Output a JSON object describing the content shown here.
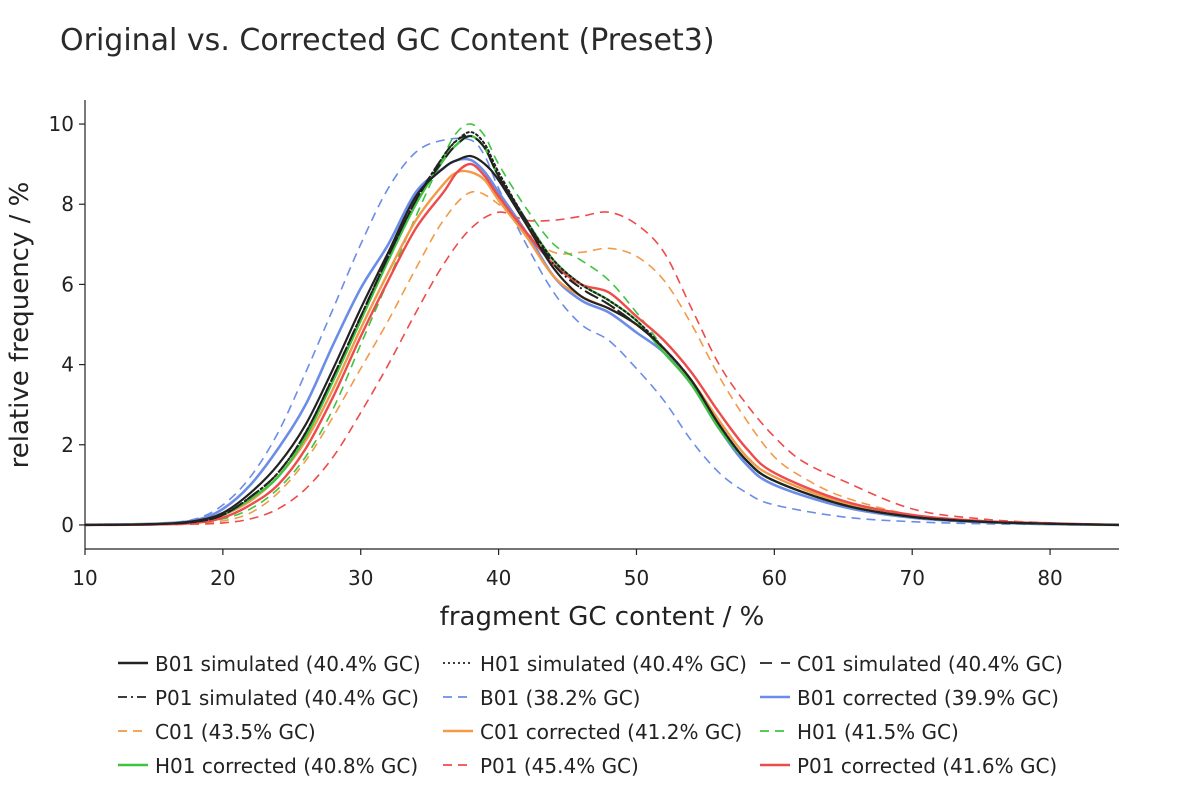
{
  "chart_data": {
    "type": "line",
    "title": "Original vs. Corrected GC Content (Preset3)",
    "xlabel": "fragment GC content / %",
    "ylabel": "relative frequency / %",
    "xlim": [
      10,
      85
    ],
    "ylim": [
      -0.6,
      10.6
    ],
    "xticks": [
      10,
      20,
      30,
      40,
      50,
      60,
      70,
      80
    ],
    "yticks": [
      0,
      2,
      4,
      6,
      8,
      10
    ],
    "grid": false,
    "legend_position": "bottom",
    "series": [
      {
        "name": "B01 simulated (40.4% GC)",
        "color": "#222222",
        "dash": "solid",
        "width": 2.2,
        "x": [
          10,
          15,
          18,
          20,
          22,
          24,
          26,
          28,
          30,
          32,
          34,
          36,
          37,
          38,
          39,
          40,
          42,
          44,
          46,
          48,
          50,
          52,
          54,
          56,
          58,
          60,
          65,
          70,
          75,
          80,
          85
        ],
        "y": [
          0,
          0.02,
          0.1,
          0.3,
          0.8,
          1.5,
          2.5,
          3.9,
          5.4,
          6.8,
          8.2,
          8.9,
          9.1,
          9.2,
          9.0,
          8.6,
          7.5,
          6.4,
          5.7,
          5.4,
          5.0,
          4.4,
          3.6,
          2.5,
          1.6,
          1.1,
          0.5,
          0.2,
          0.08,
          0.03,
          0
        ]
      },
      {
        "name": "H01 simulated (40.4% GC)",
        "color": "#222222",
        "dash": "dotted",
        "width": 2,
        "x": [
          10,
          15,
          18,
          20,
          22,
          24,
          26,
          28,
          30,
          32,
          34,
          36,
          37,
          38,
          39,
          40,
          42,
          44,
          46,
          48,
          50,
          52,
          54,
          56,
          58,
          60,
          65,
          70,
          75,
          80,
          85
        ],
        "y": [
          0,
          0.02,
          0.08,
          0.25,
          0.7,
          1.3,
          2.3,
          3.7,
          5.2,
          6.7,
          8.1,
          9.2,
          9.6,
          9.8,
          9.5,
          8.8,
          7.6,
          6.6,
          6.0,
          5.6,
          5.1,
          4.4,
          3.6,
          2.5,
          1.6,
          1.1,
          0.5,
          0.2,
          0.08,
          0.03,
          0
        ]
      },
      {
        "name": "C01 simulated (40.4% GC)",
        "color": "#222222",
        "dash": "longdash",
        "width": 2,
        "x": [
          10,
          15,
          18,
          20,
          22,
          24,
          26,
          28,
          30,
          32,
          34,
          36,
          37,
          38,
          39,
          40,
          42,
          44,
          46,
          48,
          50,
          52,
          54,
          56,
          58,
          60,
          65,
          70,
          75,
          80,
          85
        ],
        "y": [
          0,
          0.02,
          0.08,
          0.25,
          0.7,
          1.3,
          2.3,
          3.7,
          5.2,
          6.7,
          8.1,
          9.1,
          9.5,
          9.7,
          9.4,
          8.7,
          7.6,
          6.5,
          5.9,
          5.5,
          5.0,
          4.4,
          3.6,
          2.5,
          1.6,
          1.1,
          0.5,
          0.2,
          0.08,
          0.03,
          0
        ]
      },
      {
        "name": "P01 simulated (40.4% GC)",
        "color": "#222222",
        "dash": "dashdot",
        "width": 2,
        "x": [
          10,
          15,
          18,
          20,
          22,
          24,
          26,
          28,
          30,
          32,
          34,
          36,
          37,
          38,
          39,
          40,
          42,
          44,
          46,
          48,
          50,
          52,
          54,
          56,
          58,
          60,
          65,
          70,
          75,
          80,
          85
        ],
        "y": [
          0,
          0.02,
          0.08,
          0.25,
          0.7,
          1.3,
          2.3,
          3.7,
          5.2,
          6.7,
          8.1,
          9.2,
          9.6,
          9.7,
          9.4,
          8.7,
          7.6,
          6.5,
          5.9,
          5.5,
          5.0,
          4.4,
          3.6,
          2.5,
          1.6,
          1.1,
          0.5,
          0.2,
          0.08,
          0.03,
          0
        ]
      },
      {
        "name": "B01 (38.2% GC)",
        "color": "#6b8de8",
        "dash": "dashed",
        "width": 1.6,
        "x": [
          10,
          15,
          18,
          20,
          22,
          24,
          26,
          28,
          30,
          32,
          34,
          36,
          38,
          39,
          40,
          42,
          44,
          46,
          48,
          50,
          52,
          54,
          56,
          58,
          60,
          65,
          70,
          75,
          80,
          85
        ],
        "y": [
          0,
          0.03,
          0.15,
          0.5,
          1.2,
          2.3,
          3.8,
          5.4,
          7.0,
          8.4,
          9.3,
          9.6,
          9.6,
          9.2,
          8.4,
          7.0,
          5.8,
          5.0,
          4.6,
          3.9,
          3.1,
          2.1,
          1.3,
          0.8,
          0.5,
          0.2,
          0.08,
          0.03,
          0.01,
          0
        ]
      },
      {
        "name": "B01 corrected (39.9% GC)",
        "color": "#6b8de8",
        "dash": "solid",
        "width": 2.6,
        "x": [
          10,
          15,
          18,
          20,
          22,
          24,
          26,
          28,
          30,
          32,
          34,
          36,
          37,
          38,
          39,
          40,
          42,
          44,
          46,
          48,
          50,
          52,
          54,
          56,
          58,
          60,
          65,
          70,
          75,
          80,
          85
        ],
        "y": [
          0,
          0.03,
          0.12,
          0.4,
          1.0,
          1.9,
          3.0,
          4.5,
          5.9,
          7.0,
          8.3,
          8.9,
          9.1,
          9.1,
          8.8,
          8.3,
          7.3,
          6.2,
          5.6,
          5.3,
          4.8,
          4.3,
          3.5,
          2.4,
          1.5,
          1.0,
          0.45,
          0.18,
          0.07,
          0.02,
          0
        ]
      },
      {
        "name": "C01 (43.5% GC)",
        "color": "#f29a4a",
        "dash": "dashed",
        "width": 1.6,
        "x": [
          10,
          15,
          18,
          20,
          22,
          24,
          26,
          28,
          30,
          32,
          34,
          36,
          38,
          40,
          42,
          44,
          46,
          48,
          50,
          52,
          54,
          56,
          58,
          60,
          62,
          65,
          70,
          75,
          80,
          85
        ],
        "y": [
          0,
          0.01,
          0.03,
          0.1,
          0.3,
          0.8,
          1.6,
          2.7,
          3.9,
          5.1,
          6.4,
          7.6,
          8.3,
          8.0,
          7.3,
          6.8,
          6.8,
          6.9,
          6.7,
          6.1,
          5.0,
          3.7,
          2.6,
          1.7,
          1.2,
          0.7,
          0.25,
          0.1,
          0.04,
          0
        ]
      },
      {
        "name": "C01 corrected (41.2% GC)",
        "color": "#f29a4a",
        "dash": "solid",
        "width": 2.4,
        "x": [
          10,
          15,
          18,
          20,
          22,
          24,
          26,
          28,
          30,
          32,
          34,
          36,
          37,
          38,
          39,
          40,
          42,
          44,
          46,
          48,
          50,
          52,
          54,
          56,
          58,
          60,
          65,
          70,
          75,
          80,
          85
        ],
        "y": [
          0,
          0.02,
          0.08,
          0.25,
          0.6,
          1.2,
          2.1,
          3.4,
          4.9,
          6.3,
          7.6,
          8.5,
          8.8,
          8.8,
          8.6,
          8.1,
          7.2,
          6.2,
          5.7,
          5.4,
          5.0,
          4.4,
          3.6,
          2.6,
          1.7,
          1.2,
          0.55,
          0.22,
          0.09,
          0.03,
          0
        ]
      },
      {
        "name": "H01 (41.5% GC)",
        "color": "#3ec43e",
        "dash": "dashed",
        "width": 1.6,
        "x": [
          10,
          15,
          18,
          20,
          22,
          24,
          26,
          28,
          30,
          32,
          34,
          36,
          37,
          38,
          39,
          40,
          42,
          44,
          46,
          48,
          50,
          52,
          54,
          56,
          58,
          60,
          65,
          70,
          75,
          80,
          85
        ],
        "y": [
          0,
          0.01,
          0.05,
          0.15,
          0.4,
          0.9,
          1.7,
          2.9,
          4.5,
          6.1,
          7.7,
          9.2,
          9.8,
          10.0,
          9.7,
          9.0,
          7.9,
          7.0,
          6.6,
          6.1,
          5.3,
          4.4,
          3.5,
          2.4,
          1.6,
          1.1,
          0.5,
          0.2,
          0.08,
          0.03,
          0
        ]
      },
      {
        "name": "H01 corrected (40.8% GC)",
        "color": "#3ec43e",
        "dash": "solid",
        "width": 2.4,
        "x": [
          10,
          15,
          18,
          20,
          22,
          24,
          26,
          28,
          30,
          32,
          34,
          36,
          37,
          38,
          39,
          40,
          42,
          44,
          46,
          48,
          50,
          52,
          54,
          56,
          58,
          60,
          65,
          70,
          75,
          80,
          85
        ],
        "y": [
          0,
          0.02,
          0.08,
          0.25,
          0.65,
          1.2,
          2.2,
          3.6,
          5.1,
          6.6,
          8.0,
          9.1,
          9.5,
          9.7,
          9.4,
          8.7,
          7.6,
          6.6,
          6.0,
          5.6,
          5.1,
          4.3,
          3.5,
          2.4,
          1.6,
          1.1,
          0.5,
          0.2,
          0.08,
          0.03,
          0
        ]
      },
      {
        "name": "P01 (45.4% GC)",
        "color": "#ee4b4b",
        "dash": "dashed",
        "width": 1.6,
        "x": [
          10,
          15,
          18,
          20,
          22,
          24,
          26,
          28,
          30,
          32,
          34,
          36,
          38,
          40,
          42,
          44,
          46,
          48,
          50,
          52,
          54,
          56,
          58,
          60,
          62,
          65,
          70,
          75,
          80,
          85
        ],
        "y": [
          0,
          0.01,
          0.02,
          0.05,
          0.15,
          0.4,
          0.9,
          1.7,
          2.8,
          4.0,
          5.3,
          6.5,
          7.4,
          7.8,
          7.6,
          7.6,
          7.7,
          7.8,
          7.5,
          6.8,
          5.4,
          4.0,
          3.0,
          2.2,
          1.6,
          1.1,
          0.4,
          0.15,
          0.05,
          0
        ]
      },
      {
        "name": "P01 corrected (41.6% GC)",
        "color": "#ee4b4b",
        "dash": "solid",
        "width": 2.4,
        "x": [
          10,
          15,
          18,
          20,
          22,
          24,
          26,
          28,
          30,
          32,
          34,
          36,
          37,
          38,
          39,
          40,
          42,
          44,
          46,
          48,
          50,
          52,
          54,
          56,
          58,
          60,
          65,
          70,
          75,
          80,
          85
        ],
        "y": [
          0,
          0.01,
          0.05,
          0.18,
          0.5,
          1.0,
          1.9,
          3.2,
          4.7,
          6.1,
          7.4,
          8.3,
          8.8,
          9.0,
          8.7,
          8.2,
          7.3,
          6.5,
          6.0,
          5.8,
          5.2,
          4.6,
          3.8,
          2.8,
          1.9,
          1.3,
          0.6,
          0.25,
          0.1,
          0.04,
          0
        ]
      }
    ]
  }
}
